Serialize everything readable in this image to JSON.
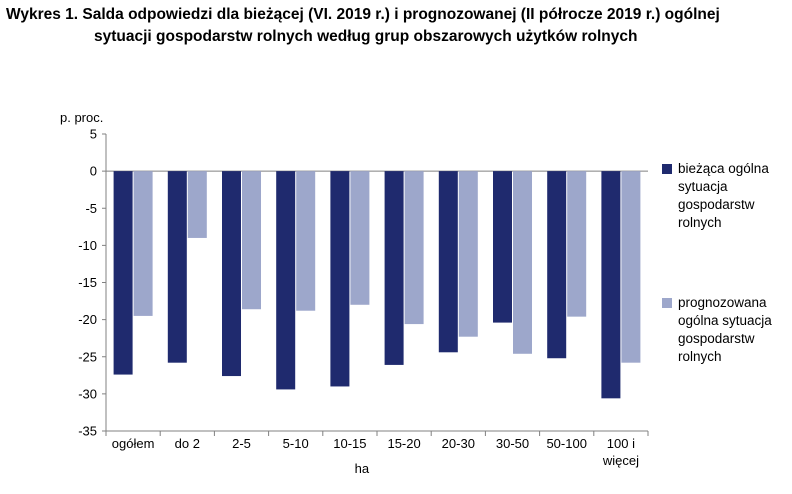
{
  "title": {
    "line1": "Wykres 1.  Salda odpowiedzi dla bieżącej (VI. 2019 r.) i prognozowanej (II półrocze 2019 r.) ogólnej",
    "line2": "sytuacji gospodarstw rolnych według grup obszarowych użytków rolnych"
  },
  "chart_data": {
    "type": "bar",
    "title": "Wykres 1.  Salda odpowiedzi dla bieżącej (VI. 2019 r.) i prognozowanej (II półrocze 2019 r.) ogólnej sytuacji gospodarstw rolnych według grup obszarowych użytków rolnych",
    "ylabel": "p. proc.",
    "xlabel": "ha",
    "ylim": [
      -35,
      5
    ],
    "yticks": [
      5,
      0,
      -5,
      -10,
      -15,
      -20,
      -25,
      -30,
      -35
    ],
    "grid": false,
    "legend_position": "right",
    "categories": [
      [
        "ogółem"
      ],
      [
        "do 2"
      ],
      [
        "2-5"
      ],
      [
        "5-10"
      ],
      [
        "10-15"
      ],
      [
        "15-20"
      ],
      [
        "20-30"
      ],
      [
        "30-50"
      ],
      [
        "50-100"
      ],
      [
        "100 i",
        "więcej"
      ]
    ],
    "series": [
      {
        "name": "bieżąca ogólna sytuacja gospodarstw rolnych",
        "legend_lines": [
          "bieżąca ogólna",
          "sytuacja",
          "gospodarstw",
          "rolnych"
        ],
        "color": "#1f2a6e",
        "values": [
          -27.4,
          -25.8,
          -27.6,
          -29.4,
          -29.0,
          -26.1,
          -24.4,
          -20.4,
          -25.2,
          -30.6
        ]
      },
      {
        "name": "prognozowana ogólna sytuacja gospodarstw rolnych",
        "legend_lines": [
          "prognozowana",
          "ogólna sytuacja",
          "gospodarstw",
          "rolnych"
        ],
        "color": "#9da7cb",
        "values": [
          -19.5,
          -9.0,
          -18.6,
          -18.8,
          -18.0,
          -20.6,
          -22.3,
          -24.6,
          -19.6,
          -25.8
        ]
      }
    ]
  }
}
